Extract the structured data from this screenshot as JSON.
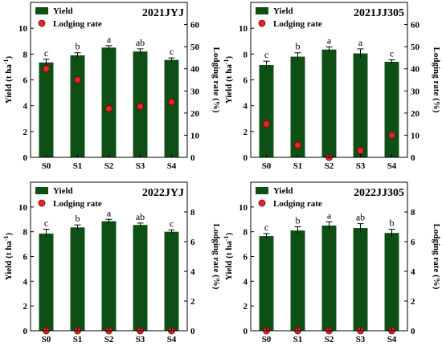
{
  "figure": {
    "panel_count": 4
  },
  "chart_data": [
    {
      "type": "bar",
      "title": "2021JYJ",
      "categories": [
        "S0",
        "S1",
        "S2",
        "S3",
        "S4"
      ],
      "series": [
        {
          "name": "Yield",
          "kind": "bar",
          "axis": "left",
          "color": "#0d4f14",
          "values": [
            7.35,
            7.9,
            8.5,
            8.2,
            7.55
          ],
          "errors": [
            0.25,
            0.2,
            0.15,
            0.2,
            0.15
          ],
          "labels": [
            "c",
            "b",
            "a",
            "ab",
            "c"
          ]
        },
        {
          "name": "Lodging rate",
          "kind": "point",
          "axis": "right",
          "color": "#e8242b",
          "values": [
            40,
            35,
            22,
            23,
            25
          ]
        }
      ],
      "ylabel_left": "Yield (t ha-1)",
      "ylabel_right": "Lodging rate (%)",
      "ylim_left": [
        0,
        12
      ],
      "yticks_left": [
        0,
        2,
        4,
        6,
        8,
        10
      ],
      "ylim_right": [
        0,
        70
      ],
      "yticks_right": [
        0,
        10,
        20,
        30,
        40,
        50,
        60
      ],
      "legend": "top-left",
      "grid": false
    },
    {
      "type": "bar",
      "title": "2021JJ305",
      "categories": [
        "S0",
        "S1",
        "S2",
        "S3",
        "S4"
      ],
      "series": [
        {
          "name": "Yield",
          "kind": "bar",
          "axis": "left",
          "color": "#0d4f14",
          "values": [
            7.15,
            7.8,
            8.35,
            8.05,
            7.4
          ],
          "errors": [
            0.3,
            0.3,
            0.2,
            0.35,
            0.15
          ],
          "labels": [
            "c",
            "b",
            "a",
            "a",
            "c"
          ]
        },
        {
          "name": "Lodging rate",
          "kind": "point",
          "axis": "right",
          "color": "#e8242b",
          "values": [
            15,
            5.5,
            0,
            3,
            10
          ]
        }
      ],
      "ylabel_left": "Yield (t ha-1)",
      "ylabel_right": "Lodging rate (%)",
      "ylim_left": [
        0,
        12
      ],
      "yticks_left": [
        0,
        2,
        4,
        6,
        8,
        10
      ],
      "ylim_right": [
        0,
        70
      ],
      "yticks_right": [
        0,
        10,
        20,
        30,
        40,
        50,
        60
      ],
      "legend": "top-left",
      "grid": false
    },
    {
      "type": "bar",
      "title": "2022JYJ",
      "categories": [
        "S0",
        "S1",
        "S2",
        "S3",
        "S4"
      ],
      "series": [
        {
          "name": "Yield",
          "kind": "bar",
          "axis": "left",
          "color": "#0d4f14",
          "values": [
            7.85,
            8.35,
            8.85,
            8.55,
            8.0
          ],
          "errors": [
            0.35,
            0.2,
            0.15,
            0.15,
            0.15
          ],
          "labels": [
            "c",
            "b",
            "a",
            "ab",
            "c"
          ]
        },
        {
          "name": "Lodging rate",
          "kind": "point",
          "axis": "right",
          "color": "#e8242b",
          "values": [
            0,
            0,
            0,
            0,
            0
          ]
        }
      ],
      "ylabel_left": "Yield (t ha-1)",
      "ylabel_right": "Lodging rate (%)",
      "ylim_left": [
        0,
        12
      ],
      "yticks_left": [
        0,
        2,
        4,
        6,
        8,
        10
      ],
      "ylim_right": [
        0,
        10
      ],
      "yticks_right": [
        0,
        2,
        4,
        6,
        8
      ],
      "legend": "top-left",
      "grid": false
    },
    {
      "type": "bar",
      "title": "2022JJ305",
      "categories": [
        "S0",
        "S1",
        "S2",
        "S3",
        "S4"
      ],
      "series": [
        {
          "name": "Yield",
          "kind": "bar",
          "axis": "left",
          "color": "#0d4f14",
          "values": [
            7.65,
            8.1,
            8.5,
            8.3,
            7.9
          ],
          "errors": [
            0.2,
            0.3,
            0.3,
            0.35,
            0.3
          ],
          "labels": [
            "c",
            "b",
            "a",
            "ab",
            "b"
          ]
        },
        {
          "name": "Lodging rate",
          "kind": "point",
          "axis": "right",
          "color": "#e8242b",
          "values": [
            0,
            0,
            0,
            0,
            0
          ]
        }
      ],
      "ylabel_left": "Yield (t ha-1)",
      "ylabel_right": "Lodging rate (%)",
      "ylim_left": [
        0,
        12
      ],
      "yticks_left": [
        0,
        2,
        4,
        6,
        8,
        10
      ],
      "ylim_right": [
        0,
        10
      ],
      "yticks_right": [
        0,
        2,
        4,
        6,
        8
      ],
      "legend": "top-left",
      "grid": false
    }
  ]
}
